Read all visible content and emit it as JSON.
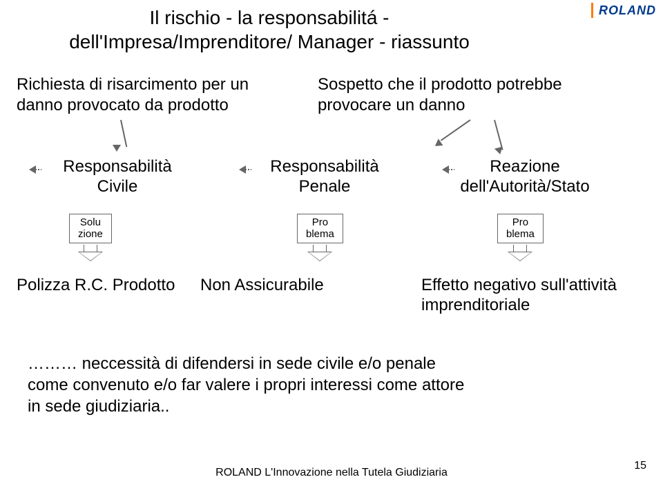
{
  "logo": {
    "text": "ROLAND",
    "bar_color": "#ff7a00",
    "text_color": "#003a8c"
  },
  "title": {
    "line1": "Il rischio - la responsabilitá -",
    "line2": "dell'Impresa/Imprenditore/ Manager - riassunto"
  },
  "blocks": {
    "left": "Richiesta di risarcimento per un danno provocato da prodotto",
    "right": "Sospetto che il prodotto potrebbe provocare un danno"
  },
  "columns": {
    "c1_l1": "Responsabilità",
    "c1_l2": "Civile",
    "c2_l1": "Responsabilità",
    "c2_l2": "Penale",
    "c3_l1": "Reazione",
    "c3_l2": "dell'Autorità/Stato"
  },
  "steps": {
    "s1_l1": "Solu",
    "s1_l2": "zione",
    "s2_l1": "Pro",
    "s2_l2": "blema",
    "s3_l1": "Pro",
    "s3_l2": "blema"
  },
  "results": {
    "r1": "Polizza R.C. Prodotto",
    "r2": "Non  Assicurabile",
    "r3_l1": "Effetto negativo sull'attività",
    "r3_l2": "imprenditoriale"
  },
  "conclusion": {
    "l1": "……… neccessità di difendersi in sede civile e/o penale",
    "l2": "come convenuto e/o far valere i propri interessi come attore",
    "l3": "in sede giudiziaria.."
  },
  "footer": "ROLAND L'Innovazione nella Tutela Giudiziaria",
  "page_number": "15",
  "colors": {
    "text": "#000000",
    "arrow": "#666666",
    "bg": "#ffffff"
  }
}
